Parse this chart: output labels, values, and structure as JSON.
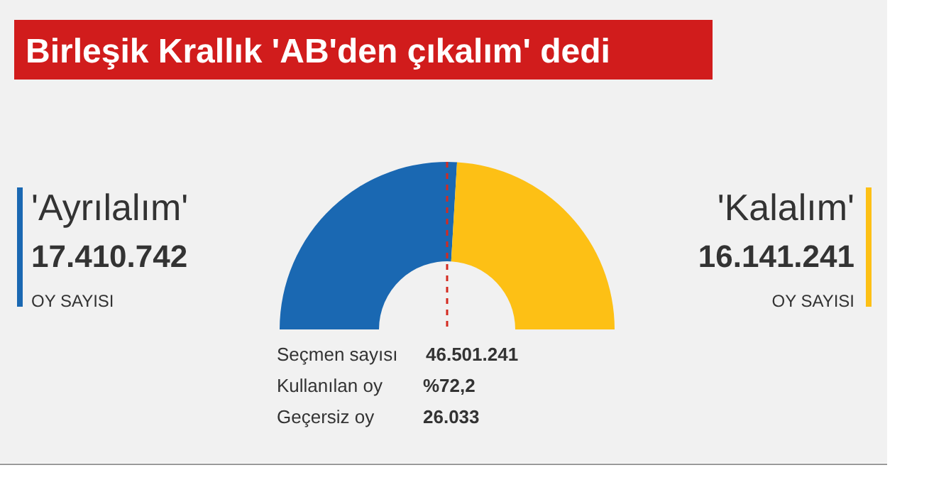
{
  "chart_data": {
    "type": "donut",
    "title": "Birleşik Krallık 'AB'den çıkalım' dedi",
    "categories": [
      "'Ayrılalım'",
      "'Kalalım'"
    ],
    "values": [
      17410742,
      16141241
    ],
    "colors": [
      "#1a68b2",
      "#fdc015"
    ],
    "value_labels": [
      "17.410.742",
      "16.141.241"
    ],
    "needle": "'Ayrılalım'",
    "annotations": [
      "OY SAYISI",
      "OY SAYISI",
      "Seçmen sayısı",
      "46.501.241",
      "Kullanılan oy",
      "%72,2",
      "Geçersiz oy",
      "26.033"
    ]
  }
}
